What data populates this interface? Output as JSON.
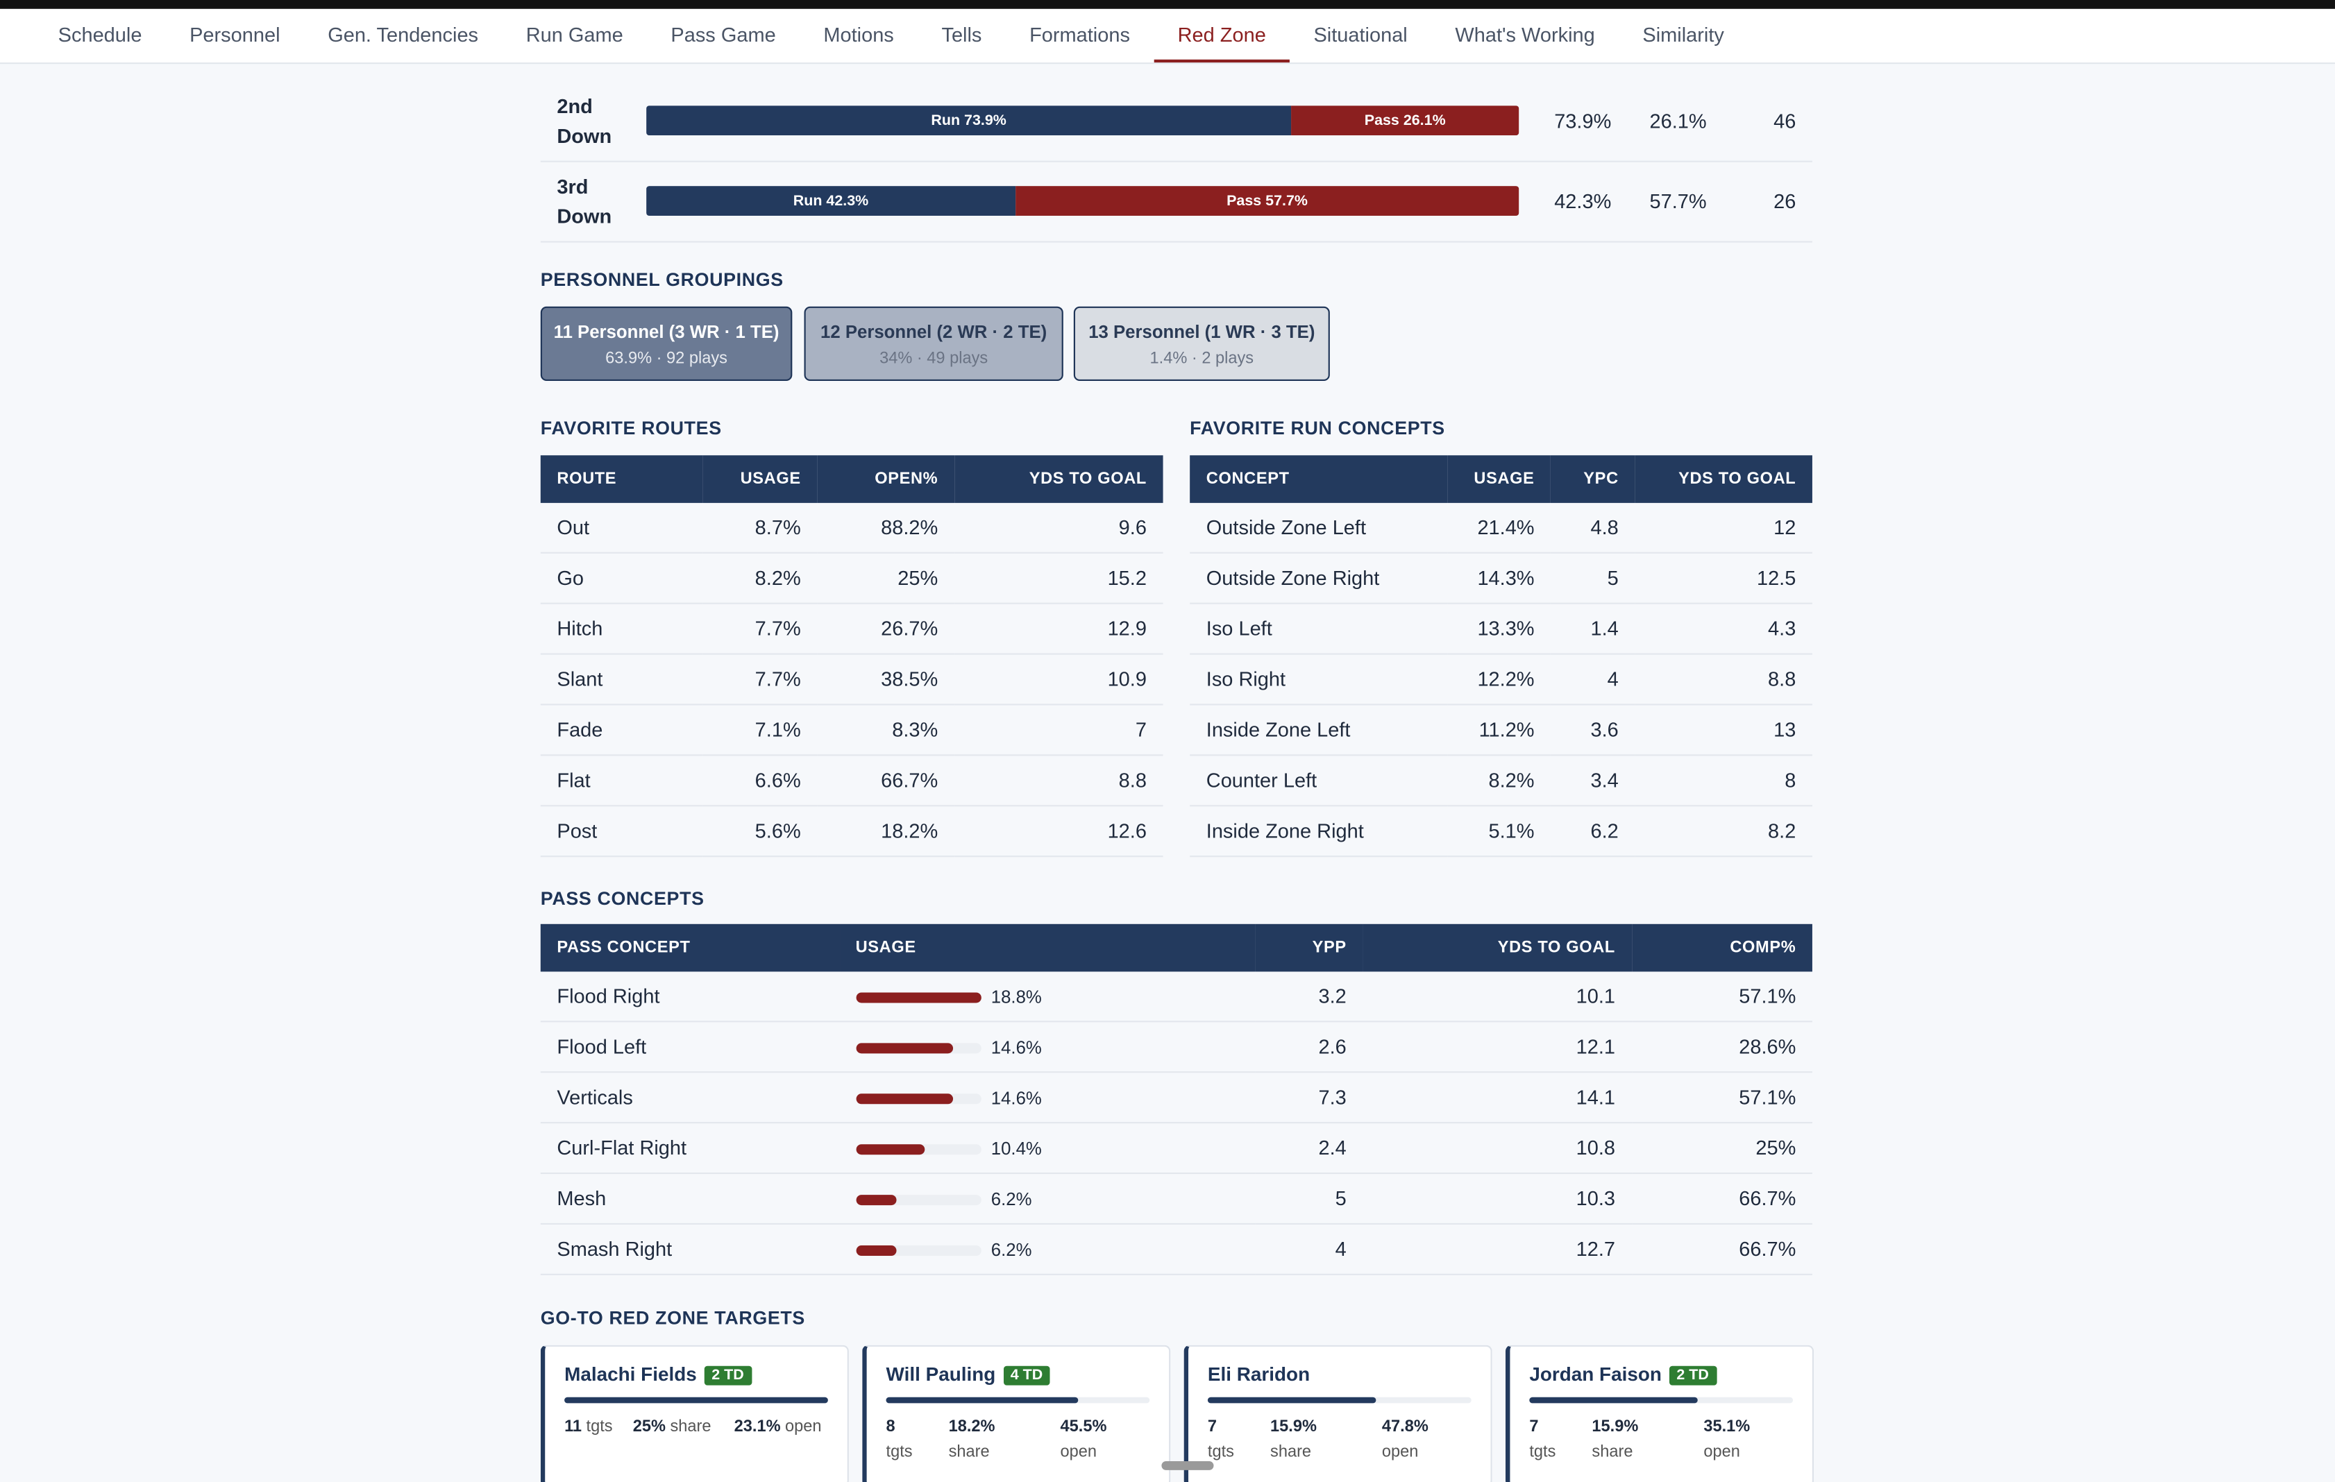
{
  "nav": {
    "tabs": [
      "Schedule",
      "Personnel",
      "Gen. Tendencies",
      "Run Game",
      "Pass Game",
      "Motions",
      "Tells",
      "Formations",
      "Red Zone",
      "Situational",
      "What's Working",
      "Similarity"
    ],
    "active": 8
  },
  "down_rows": [
    {
      "down": "2nd Down",
      "run": 73.9,
      "pass": 26.1,
      "run_label": "Run 73.9%",
      "pass_label": "Pass 26.1%",
      "run_pct": "73.9%",
      "pass_pct": "26.1%",
      "plays": "46"
    },
    {
      "down": "3rd Down",
      "run": 42.3,
      "pass": 57.7,
      "run_label": "Run 42.3%",
      "pass_label": "Pass 57.7%",
      "run_pct": "42.3%",
      "pass_pct": "57.7%",
      "plays": "26"
    }
  ],
  "personnel": {
    "title": "PERSONNEL GROUPINGS",
    "groups": [
      {
        "name": "11 Personnel (3 WR · 1 TE)",
        "detail": "63.9% · 92 plays",
        "color": "#6b7a94"
      },
      {
        "name": "12 Personnel (2 WR · 2 TE)",
        "detail": "34% · 49 plays",
        "color": "#a9b2c2"
      },
      {
        "name": "13 Personnel (1 WR · 3 TE)",
        "detail": "1.4% · 2 plays",
        "color": "#d9dde3"
      }
    ]
  },
  "routes": {
    "title": "FAVORITE ROUTES",
    "columns": [
      "ROUTE",
      "USAGE",
      "OPEN%",
      "YDS TO GOAL"
    ],
    "rows": [
      [
        "Out",
        "8.7%",
        "88.2%",
        "9.6"
      ],
      [
        "Go",
        "8.2%",
        "25%",
        "15.2"
      ],
      [
        "Hitch",
        "7.7%",
        "26.7%",
        "12.9"
      ],
      [
        "Slant",
        "7.7%",
        "38.5%",
        "10.9"
      ],
      [
        "Fade",
        "7.1%",
        "8.3%",
        "7"
      ],
      [
        "Flat",
        "6.6%",
        "66.7%",
        "8.8"
      ],
      [
        "Post",
        "5.6%",
        "18.2%",
        "12.6"
      ]
    ]
  },
  "run_concepts": {
    "title": "FAVORITE RUN CONCEPTS",
    "columns": [
      "CONCEPT",
      "USAGE",
      "YPC",
      "YDS TO GOAL"
    ],
    "rows": [
      [
        "Outside Zone Left",
        "21.4%",
        "4.8",
        "12"
      ],
      [
        "Outside Zone Right",
        "14.3%",
        "5",
        "12.5"
      ],
      [
        "Iso Left",
        "13.3%",
        "1.4",
        "4.3"
      ],
      [
        "Iso Right",
        "12.2%",
        "4",
        "8.8"
      ],
      [
        "Inside Zone Left",
        "11.2%",
        "3.6",
        "13"
      ],
      [
        "Counter Left",
        "8.2%",
        "3.4",
        "8"
      ],
      [
        "Inside Zone Right",
        "5.1%",
        "6.2",
        "8.2"
      ]
    ]
  },
  "pass_concepts": {
    "title": "PASS CONCEPTS",
    "columns": [
      "PASS CONCEPT",
      "USAGE",
      "YPP",
      "YDS TO GOAL",
      "COMP%"
    ],
    "rows": [
      {
        "name": "Flood Right",
        "usage": 18.8,
        "usage_label": "18.8%",
        "ypp": "3.2",
        "yds": "10.1",
        "comp": "57.1%"
      },
      {
        "name": "Flood Left",
        "usage": 14.6,
        "usage_label": "14.6%",
        "ypp": "2.6",
        "yds": "12.1",
        "comp": "28.6%"
      },
      {
        "name": "Verticals",
        "usage": 14.6,
        "usage_label": "14.6%",
        "ypp": "7.3",
        "yds": "14.1",
        "comp": "57.1%"
      },
      {
        "name": "Curl-Flat Right",
        "usage": 10.4,
        "usage_label": "10.4%",
        "ypp": "2.4",
        "yds": "10.8",
        "comp": "25%"
      },
      {
        "name": "Mesh",
        "usage": 6.2,
        "usage_label": "6.2%",
        "ypp": "5",
        "yds": "10.3",
        "comp": "66.7%"
      },
      {
        "name": "Smash Right",
        "usage": 6.2,
        "usage_label": "6.2%",
        "ypp": "4",
        "yds": "12.7",
        "comp": "66.7%"
      }
    ]
  },
  "targets": {
    "title": "GO-TO RED ZONE TARGETS",
    "stat_labels": [
      "tgts",
      "share",
      "open"
    ],
    "cards": [
      {
        "name": "Malachi Fields",
        "td": "2 TD",
        "tgts": "11",
        "share": 25,
        "share_label": "25%",
        "open": "23.1%"
      },
      {
        "name": "Will Pauling",
        "td": "4 TD",
        "tgts": "8",
        "share": 18.2,
        "share_label": "18.2%",
        "open": "45.5%"
      },
      {
        "name": "Eli Raridon",
        "td": null,
        "tgts": "7",
        "share": 15.9,
        "share_label": "15.9%",
        "open": "47.8%"
      },
      {
        "name": "Jordan Faison",
        "td": "2 TD",
        "tgts": "7",
        "share": 15.9,
        "share_label": "15.9%",
        "open": "35.1%"
      }
    ]
  }
}
